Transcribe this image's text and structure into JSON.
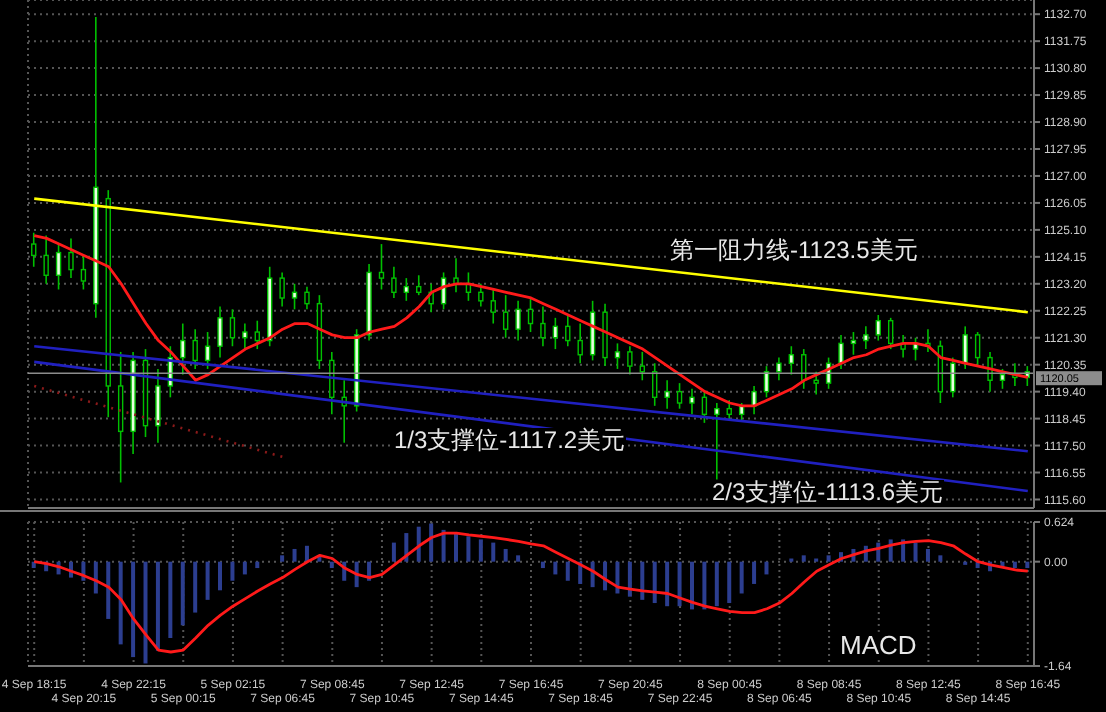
{
  "chart_data": [
    {
      "type": "candlestick",
      "categories": [
        "4 Sep 18:15",
        null,
        null,
        null,
        "4 Sep 20:15",
        null,
        null,
        null,
        "4 Sep 22:15",
        null,
        null,
        null,
        "5 Sep 00:15",
        null,
        null,
        null,
        "5 Sep 02:15",
        null,
        null,
        null,
        "7 Sep 06:45",
        null,
        null,
        null,
        "7 Sep 08:45",
        null,
        null,
        null,
        "7 Sep 10:45",
        null,
        null,
        null,
        "7 Sep 12:45",
        null,
        null,
        null,
        "7 Sep 14:45",
        null,
        null,
        null,
        "7 Sep 16:45",
        null,
        null,
        null,
        "7 Sep 18:45",
        null,
        null,
        null,
        "7 Sep 20:45",
        null,
        null,
        null,
        "7 Sep 22:45",
        null,
        null,
        null,
        "8 Sep 00:45",
        null,
        null,
        null,
        "8 Sep 06:45",
        null,
        null,
        null,
        "8 Sep 08:45",
        null,
        null,
        null,
        "8 Sep 10:45",
        null,
        null,
        null,
        "8 Sep 12:45",
        null,
        null,
        null,
        "8 Sep 14:45",
        null,
        null,
        null,
        "8 Sep 16:45"
      ],
      "color": "#00c000",
      "ohlc": [
        [
          1124.6,
          1125.0,
          1123.8,
          1124.2
        ],
        [
          1124.2,
          1124.9,
          1123.2,
          1123.5
        ],
        [
          1123.5,
          1124.6,
          1123.0,
          1124.3
        ],
        [
          1124.3,
          1124.8,
          1123.4,
          1123.7
        ],
        [
          1123.7,
          1124.2,
          1123.0,
          1123.3
        ],
        [
          1122.5,
          1132.6,
          1122.0,
          1126.6
        ],
        [
          1126.2,
          1126.5,
          1118.5,
          1119.6
        ],
        [
          1119.6,
          1120.8,
          1116.2,
          1118.0
        ],
        [
          1118.0,
          1120.8,
          1117.2,
          1120.5
        ],
        [
          1120.5,
          1120.9,
          1117.8,
          1118.2
        ],
        [
          1118.2,
          1120.2,
          1117.6,
          1119.6
        ],
        [
          1119.6,
          1121.0,
          1119.2,
          1120.6
        ],
        [
          1120.6,
          1121.8,
          1120.0,
          1121.2
        ],
        [
          1121.2,
          1121.6,
          1120.2,
          1120.5
        ],
        [
          1120.5,
          1121.5,
          1120.2,
          1121.0
        ],
        [
          1121.0,
          1122.4,
          1120.6,
          1122.0
        ],
        [
          1122.0,
          1122.3,
          1121.0,
          1121.3
        ],
        [
          1121.3,
          1121.8,
          1120.9,
          1121.5
        ],
        [
          1121.5,
          1121.9,
          1120.9,
          1121.2
        ],
        [
          1121.2,
          1123.8,
          1121.0,
          1123.4
        ],
        [
          1123.4,
          1123.6,
          1122.4,
          1122.7
        ],
        [
          1122.7,
          1123.2,
          1122.3,
          1122.9
        ],
        [
          1122.9,
          1123.1,
          1122.3,
          1122.5
        ],
        [
          1122.5,
          1122.8,
          1120.2,
          1120.5
        ],
        [
          1120.5,
          1120.8,
          1118.6,
          1119.2
        ],
        [
          1119.2,
          1119.8,
          1117.6,
          1118.9
        ],
        [
          1118.9,
          1121.6,
          1118.7,
          1121.4
        ],
        [
          1121.4,
          1123.9,
          1121.2,
          1123.6
        ],
        [
          1123.6,
          1124.6,
          1123.0,
          1123.4
        ],
        [
          1123.4,
          1123.8,
          1122.7,
          1122.9
        ],
        [
          1122.9,
          1123.4,
          1122.6,
          1123.1
        ],
        [
          1123.1,
          1123.5,
          1122.8,
          1122.9
        ],
        [
          1122.9,
          1123.2,
          1122.2,
          1122.5
        ],
        [
          1122.5,
          1123.6,
          1122.3,
          1123.4
        ],
        [
          1123.4,
          1124.1,
          1122.9,
          1123.2
        ],
        [
          1123.2,
          1123.6,
          1122.6,
          1122.9
        ],
        [
          1122.9,
          1123.2,
          1122.4,
          1122.6
        ],
        [
          1122.6,
          1123.0,
          1121.8,
          1122.2
        ],
        [
          1122.2,
          1122.8,
          1121.3,
          1121.6
        ],
        [
          1121.6,
          1122.6,
          1121.2,
          1122.3
        ],
        [
          1122.3,
          1122.7,
          1121.5,
          1121.8
        ],
        [
          1121.8,
          1122.4,
          1121.0,
          1121.3
        ],
        [
          1121.3,
          1122.0,
          1120.9,
          1121.7
        ],
        [
          1121.7,
          1122.1,
          1121.0,
          1121.2
        ],
        [
          1121.2,
          1121.8,
          1120.4,
          1120.7
        ],
        [
          1120.7,
          1122.6,
          1120.5,
          1122.2
        ],
        [
          1122.2,
          1122.5,
          1120.3,
          1120.6
        ],
        [
          1120.6,
          1121.1,
          1120.2,
          1120.8
        ],
        [
          1120.8,
          1121.0,
          1120.0,
          1120.3
        ],
        [
          1120.3,
          1120.8,
          1119.8,
          1120.1
        ],
        [
          1120.1,
          1120.4,
          1118.9,
          1119.2
        ],
        [
          1119.2,
          1119.8,
          1118.8,
          1119.4
        ],
        [
          1119.4,
          1119.7,
          1118.8,
          1119.0
        ],
        [
          1119.0,
          1119.5,
          1118.6,
          1119.2
        ],
        [
          1119.2,
          1119.4,
          1118.3,
          1118.6
        ],
        [
          1118.6,
          1119.0,
          1116.3,
          1118.8
        ],
        [
          1118.8,
          1119.1,
          1118.4,
          1118.6
        ],
        [
          1118.6,
          1119.0,
          1118.4,
          1118.9
        ],
        [
          1118.9,
          1119.6,
          1118.6,
          1119.4
        ],
        [
          1119.4,
          1120.3,
          1119.2,
          1120.1
        ],
        [
          1120.1,
          1120.6,
          1119.8,
          1120.4
        ],
        [
          1120.4,
          1121.0,
          1120.0,
          1120.7
        ],
        [
          1120.7,
          1120.9,
          1119.5,
          1119.8
        ],
        [
          1119.8,
          1120.1,
          1119.3,
          1119.7
        ],
        [
          1119.7,
          1120.6,
          1119.5,
          1120.4
        ],
        [
          1120.4,
          1121.4,
          1120.2,
          1121.1
        ],
        [
          1121.1,
          1121.5,
          1120.7,
          1121.2
        ],
        [
          1121.2,
          1121.7,
          1120.9,
          1121.4
        ],
        [
          1121.4,
          1122.1,
          1121.2,
          1121.9
        ],
        [
          1121.9,
          1122.0,
          1120.9,
          1121.1
        ],
        [
          1121.1,
          1121.4,
          1120.6,
          1120.9
        ],
        [
          1120.9,
          1121.3,
          1120.5,
          1121.1
        ],
        [
          1121.1,
          1121.6,
          1120.8,
          1121.0
        ],
        [
          1121.0,
          1121.2,
          1119.0,
          1119.4
        ],
        [
          1119.4,
          1120.6,
          1119.2,
          1120.4
        ],
        [
          1120.4,
          1121.7,
          1120.2,
          1121.4
        ],
        [
          1121.4,
          1121.5,
          1120.3,
          1120.6
        ],
        [
          1120.6,
          1120.8,
          1119.4,
          1119.8
        ],
        [
          1119.8,
          1120.2,
          1119.5,
          1120.0
        ],
        [
          1120.0,
          1120.4,
          1119.6,
          1119.9
        ],
        [
          1119.9,
          1120.3,
          1119.6,
          1120.1
        ]
      ],
      "series": [
        {
          "type": "line",
          "color": "#ff1a1a",
          "values": [
            1124.9,
            1124.8,
            1124.6,
            1124.4,
            1124.2,
            1124.0,
            1123.8,
            1123.2,
            1122.5,
            1121.8,
            1121.2,
            1120.8,
            1120.3,
            1119.8,
            1120.0,
            1120.3,
            1120.6,
            1120.9,
            1121.1,
            1121.3,
            1121.6,
            1121.8,
            1121.8,
            1121.6,
            1121.4,
            1121.3,
            1121.3,
            1121.5,
            1121.6,
            1121.7,
            1122.0,
            1122.4,
            1122.9,
            1123.1,
            1123.2,
            1123.2,
            1123.1,
            1123.0,
            1122.9,
            1122.8,
            1122.7,
            1122.5,
            1122.3,
            1122.1,
            1121.9,
            1121.7,
            1121.5,
            1121.3,
            1121.1,
            1120.9,
            1120.6,
            1120.3,
            1120.0,
            1119.7,
            1119.4,
            1119.2,
            1119.0,
            1118.9,
            1118.9,
            1119.1,
            1119.3,
            1119.5,
            1119.8,
            1120.0,
            1120.2,
            1120.4,
            1120.6,
            1120.7,
            1120.9,
            1121.0,
            1121.1,
            1121.1,
            1121.0,
            1120.6,
            1120.5,
            1120.4,
            1120.3,
            1120.2,
            1120.1,
            1120.0,
            1119.9
          ]
        },
        {
          "type": "line",
          "color": "#ffff00",
          "x": [
            "4 Sep 18:15",
            "8 Sep 16:45"
          ],
          "values": [
            1126.2,
            1122.2
          ]
        },
        {
          "type": "line",
          "color": "#2020c0",
          "x": [
            "4 Sep 18:15",
            "8 Sep 16:45"
          ],
          "values": [
            1121.0,
            1117.3
          ]
        },
        {
          "type": "line",
          "color": "#2020c0",
          "x": [
            "4 Sep 18:15",
            "8 Sep 16:45"
          ],
          "values": [
            1120.45,
            1115.9
          ]
        },
        {
          "type": "line",
          "color": "#8b1a1a",
          "line_style": "dotted",
          "x": [
            "4 Sep 18:15",
            "7 Sep 06:45"
          ],
          "values": [
            1119.6,
            1117.1
          ]
        }
      ],
      "ylim": [
        1115.3,
        1133.2
      ],
      "yticks": [
        {
          "value": 1132.7,
          "label": "1132.70"
        },
        {
          "value": 1131.75,
          "label": "1131.75"
        },
        {
          "value": 1130.8,
          "label": "1130.80"
        },
        {
          "value": 1129.85,
          "label": "1129.85"
        },
        {
          "value": 1128.9,
          "label": "1128.90"
        },
        {
          "value": 1127.95,
          "label": "1127.95"
        },
        {
          "value": 1127,
          "label": "1127.00"
        },
        {
          "value": 1126.05,
          "label": "1126.05"
        },
        {
          "value": 1125.1,
          "label": "1125.10"
        },
        {
          "value": 1124.15,
          "label": "1124.15"
        },
        {
          "value": 1123.2,
          "label": "1123.20"
        },
        {
          "value": 1122.25,
          "label": "1122.25"
        },
        {
          "value": 1121.3,
          "label": "1121.30"
        },
        {
          "value": 1120.35,
          "label": "1120.35"
        },
        {
          "value": 1119.4,
          "label": "1119.40"
        },
        {
          "value": 1118.45,
          "label": "1118.45"
        },
        {
          "value": 1117.5,
          "label": "1117.50"
        },
        {
          "value": 1116.55,
          "label": "1116.55"
        },
        {
          "value": 1115.6,
          "label": "1115.60"
        }
      ],
      "ref_lines": [
        {
          "axis": "y",
          "value": 1120.05,
          "label": "1120.05",
          "color": "#8c8c8c"
        }
      ],
      "annotations": [
        "第一阻力线-1123.5美元",
        "1/3支撑位-1117.2美元",
        "2/3支撑位-1113.6美元"
      ],
      "grid": true,
      "tick_labels": "y"
    },
    {
      "type": "bar",
      "categories": [
        "4 Sep 18:15",
        null,
        null,
        null,
        "4 Sep 20:15",
        null,
        null,
        null,
        "4 Sep 22:15",
        null,
        null,
        null,
        "5 Sep 00:15",
        null,
        null,
        null,
        "5 Sep 02:15",
        null,
        null,
        null,
        "7 Sep 06:45",
        null,
        null,
        null,
        "7 Sep 08:45",
        null,
        null,
        null,
        "7 Sep 10:45",
        null,
        null,
        null,
        "7 Sep 12:45",
        null,
        null,
        null,
        "7 Sep 14:45",
        null,
        null,
        null,
        "7 Sep 16:45",
        null,
        null,
        null,
        "7 Sep 18:45",
        null,
        null,
        null,
        "7 Sep 20:45",
        null,
        null,
        null,
        "7 Sep 22:45",
        null,
        null,
        null,
        "8 Sep 00:45",
        null,
        null,
        null,
        "8 Sep 06:45",
        null,
        null,
        null,
        "8 Sep 08:45",
        null,
        null,
        null,
        "8 Sep 10:45",
        null,
        null,
        null,
        "8 Sep 12:45",
        null,
        null,
        null,
        "8 Sep 14:45",
        null,
        null,
        null,
        "8 Sep 16:45"
      ],
      "series": [
        {
          "type": "bar",
          "color": "#2c3e90",
          "values": [
            -0.1,
            -0.15,
            -0.2,
            -0.25,
            -0.3,
            -0.5,
            -0.9,
            -1.3,
            -1.5,
            -1.6,
            -1.4,
            -1.2,
            -1.0,
            -0.8,
            -0.6,
            -0.45,
            -0.3,
            -0.2,
            -0.1,
            0,
            0.1,
            0.2,
            0.25,
            0.1,
            -0.1,
            -0.3,
            -0.4,
            -0.3,
            0,
            0.3,
            0.45,
            0.55,
            0.6,
            0.5,
            0.45,
            0.4,
            0.35,
            0.3,
            0.2,
            0.1,
            0,
            -0.1,
            -0.2,
            -0.3,
            -0.35,
            -0.4,
            -0.45,
            -0.5,
            -0.55,
            -0.6,
            -0.65,
            -0.7,
            -0.7,
            -0.75,
            -0.75,
            -0.7,
            -0.65,
            -0.5,
            -0.35,
            -0.2,
            0,
            0.05,
            0.1,
            0.05,
            0.1,
            0.15,
            0.2,
            0.25,
            0.3,
            0.35,
            0.35,
            0.3,
            0.2,
            0.1,
            0,
            -0.05,
            -0.1,
            -0.15,
            -0.1,
            -0.1,
            -0.1
          ]
        },
        {
          "type": "line",
          "color": "#ff1a1a",
          "values": [
            0,
            -0.03,
            -0.08,
            -0.15,
            -0.22,
            -0.3,
            -0.4,
            -0.6,
            -0.9,
            -1.15,
            -1.39,
            -1.42,
            -1.39,
            -1.2,
            -1.0,
            -0.84,
            -0.7,
            -0.58,
            -0.46,
            -0.35,
            -0.25,
            -0.12,
            0,
            0.1,
            0.05,
            -0.1,
            -0.2,
            -0.25,
            -0.2,
            -0.05,
            0.1,
            0.25,
            0.38,
            0.45,
            0.45,
            0.42,
            0.4,
            0.38,
            0.35,
            0.32,
            0.28,
            0.25,
            0.15,
            0.05,
            -0.05,
            -0.15,
            -0.28,
            -0.4,
            -0.43,
            -0.46,
            -0.48,
            -0.5,
            -0.57,
            -0.64,
            -0.7,
            -0.74,
            -0.78,
            -0.8,
            -0.8,
            -0.74,
            -0.65,
            -0.5,
            -0.32,
            -0.15,
            -0.05,
            0.05,
            0.11,
            0.17,
            0.21,
            0.26,
            0.3,
            0.32,
            0.33,
            0.3,
            0.25,
            0.12,
            0,
            -0.05,
            -0.09,
            -0.13,
            -0.15
          ]
        }
      ],
      "ylim": [
        -1.64,
        0.624
      ],
      "yticks": [
        0.624,
        {
          "value": 0,
          "label": "0.00"
        },
        -1.64
      ],
      "annotations": [
        "MACD"
      ],
      "grid": true
    }
  ]
}
